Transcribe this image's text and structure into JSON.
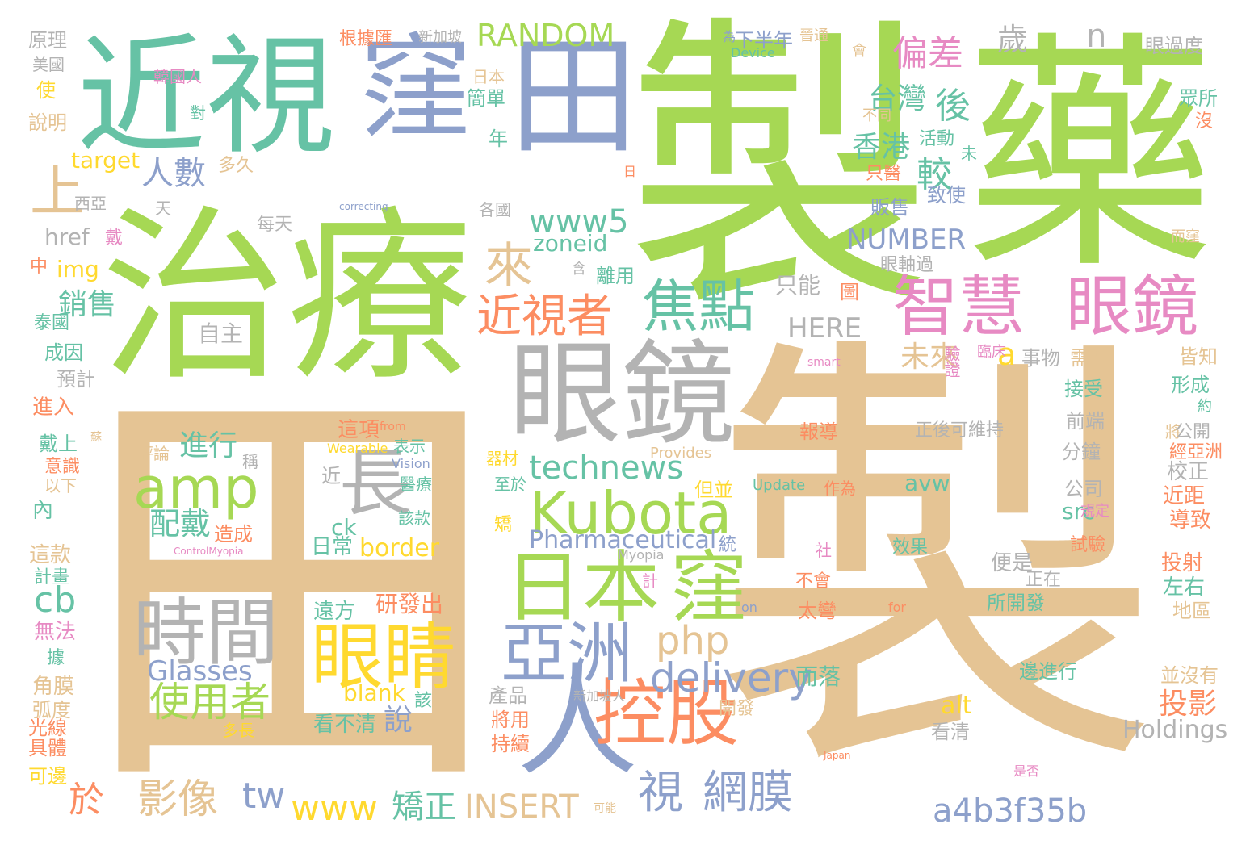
{
  "palette": {
    "green": "#a6d854",
    "teal": "#66c2a5",
    "blue": "#8da0cb",
    "orange": "#fc8d62",
    "pink": "#e78ac3",
    "yellow": "#ffd92f",
    "tan": "#e5c494",
    "gray": "#b3b3b3"
  },
  "words": [
    "製",
    "製",
    "藥",
    "田",
    "治療",
    "近視",
    "窪",
    "田",
    "眼鏡",
    "智慧",
    "眼鏡",
    "人",
    "控股",
    "日本",
    "窪",
    "Kubota",
    "amp",
    "時間",
    "眼睛",
    "長",
    "亞洲",
    "焦點",
    "近視者",
    "上",
    "來",
    "technews",
    "www5",
    "使用者",
    "網膜",
    "視",
    "delivery",
    "a4b3f35b",
    "php",
    "偏差",
    "RANDOM",
    "人數",
    "台灣",
    "香港",
    "後",
    "較",
    "n",
    "歲",
    "NUMBER",
    "HERE",
    "a",
    "未來",
    "影像",
    "於",
    "tw",
    "www",
    "矯正",
    "INSERT",
    "進行",
    "配戴",
    "cb",
    "Glasses",
    "Pharmaceutical",
    "border",
    "blank",
    "說",
    "投影",
    "Holdings",
    "alt",
    "avw",
    "src",
    "ck",
    "zoneid",
    "img",
    "銷售",
    "href",
    "target",
    "日常",
    "看不清",
    "遠方",
    "研發出",
    "而落",
    "太彎",
    "所開發",
    "邊進行",
    "並沒有",
    "地區",
    "左右",
    "投射",
    "便是",
    "正在",
    "導致",
    "近距",
    "校正",
    "公司",
    "分鐘",
    "前端",
    "接受",
    "形成",
    "皆知",
    "需要",
    "事物",
    "臨床",
    "驗證",
    "只能",
    "圖",
    "自主",
    "離用",
    "含",
    "致使",
    "販售",
    "眼軸過",
    "活動",
    "只醫",
    "不同",
    "沒",
    "眾所",
    "眼過度",
    "原理",
    "美國",
    "韓國人",
    "根據匯",
    "新加坡",
    "下半年",
    "為",
    "晉通",
    "Device",
    "會",
    "日本",
    "簡單",
    "年",
    "對",
    "說明",
    "使",
    "多久",
    "天",
    "西亞",
    "每天",
    "各國",
    "correcting",
    "戴",
    "中",
    "泰國",
    "成因",
    "預計",
    "進入",
    "戴上",
    "意識",
    "以下",
    "內",
    "這款",
    "計畫",
    "無法",
    "據",
    "角膜",
    "弧度",
    "光線",
    "具體",
    "可邊",
    "評論",
    "稱",
    "造成",
    "近",
    "這項",
    "from",
    "表示",
    "Wearable",
    "Vision",
    "醫療",
    "該款",
    "ControlMyopia",
    "器材",
    "至於",
    "矯",
    "但並",
    "Provides",
    "Update",
    "作為",
    "Myopia",
    "統",
    "社",
    "計",
    "不會",
    "on",
    "for",
    "效果",
    "試驗",
    "規定",
    "產品",
    "新加坡人",
    "開發",
    "將用",
    "持續",
    "多長",
    "該",
    "看清",
    "smart",
    "可能",
    "Japan",
    "是否",
    "正後可維持",
    "報導",
    "將",
    "公開",
    "經亞洲",
    "約",
    "而窪",
    "未",
    "日",
    "蘇"
  ]
}
